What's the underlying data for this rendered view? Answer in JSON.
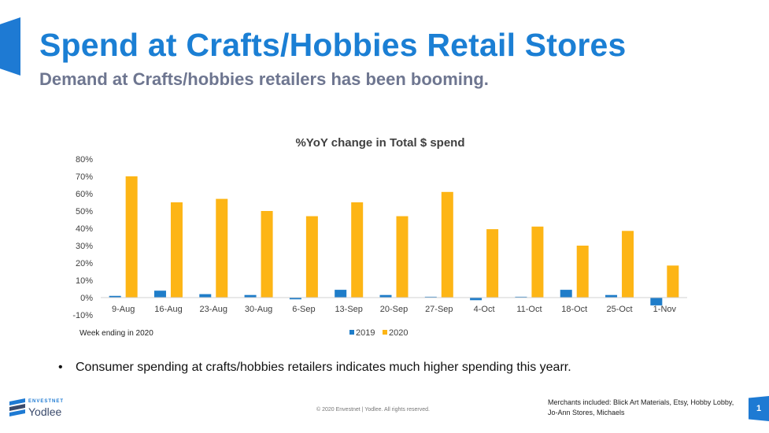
{
  "header": {
    "title": "Spend at Crafts/Hobbies Retail Stores",
    "subtitle": "Demand at Crafts/hobbies retailers has been booming."
  },
  "colors": {
    "accent": "#1E7AD3",
    "series_2019": "#1F7DC9",
    "series_2020": "#FDB515"
  },
  "chart_data": {
    "type": "bar",
    "title": "%YoY change in Total $ spend",
    "xlabel": "Week ending in 2020",
    "ylabel": "",
    "ylim": [
      -0.1,
      0.8
    ],
    "yticks": [
      -0.1,
      0,
      0.1,
      0.2,
      0.3,
      0.4,
      0.5,
      0.6,
      0.7,
      0.8
    ],
    "ytick_labels": [
      "-10%",
      "0%",
      "10%",
      "20%",
      "30%",
      "40%",
      "50%",
      "60%",
      "70%",
      "80%"
    ],
    "categories": [
      "9-Aug",
      "16-Aug",
      "23-Aug",
      "30-Aug",
      "6-Sep",
      "13-Sep",
      "20-Sep",
      "27-Sep",
      "4-Oct",
      "11-Oct",
      "18-Oct",
      "25-Oct",
      "1-Nov"
    ],
    "series": [
      {
        "name": "2019",
        "color": "#1F7DC9",
        "values": [
          0.01,
          0.04,
          0.02,
          0.015,
          -0.01,
          0.045,
          0.015,
          0.005,
          -0.015,
          0.005,
          0.045,
          0.015,
          -0.045
        ]
      },
      {
        "name": "2020",
        "color": "#FDB515",
        "values": [
          0.7,
          0.55,
          0.57,
          0.5,
          0.47,
          0.55,
          0.47,
          0.61,
          0.395,
          0.41,
          0.3,
          0.385,
          0.185
        ]
      }
    ],
    "legend_position": "bottom",
    "grid": false
  },
  "bullets": [
    "Consumer spending at crafts/hobbies retailers indicates much higher spending this yearr."
  ],
  "footer": {
    "logo_small": "ENVESTNET",
    "logo_big": "Yodlee",
    "copyright": "© 2020 Envestnet | Yodlee. All rights reserved.",
    "merchants": "Merchants included: Blick Art Materials, Etsy, Hobby Lobby, Jo-Ann Stores, Michaels",
    "page_number": "1"
  }
}
